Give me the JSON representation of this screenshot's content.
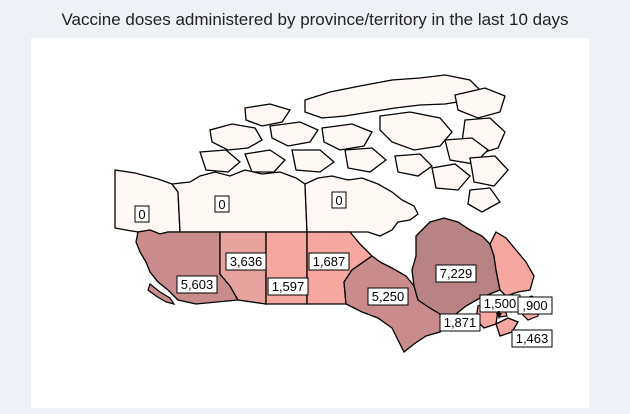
{
  "title": "Vaccine doses administered by province/territory in the last 10 days",
  "colors": {
    "background": "#eef1f5",
    "panel": "#ffffff",
    "zero": "#fff8f5",
    "low": "#f6a79f",
    "mid": "#e7a3a0",
    "high": "#c98b8b",
    "highest": "#b98385",
    "border": "#000000"
  },
  "regions": [
    {
      "id": "yukon",
      "value": "0"
    },
    {
      "id": "northwest-territories",
      "value": "0"
    },
    {
      "id": "nunavut",
      "value": "0"
    },
    {
      "id": "british-columbia",
      "value": "5,603"
    },
    {
      "id": "alberta",
      "value": "3,636"
    },
    {
      "id": "saskatchewan",
      "value": "1,597"
    },
    {
      "id": "manitoba",
      "value": "1,687"
    },
    {
      "id": "ontario",
      "value": "5,250"
    },
    {
      "id": "quebec",
      "value": "7,229"
    },
    {
      "id": "new-brunswick",
      "value": "1,871"
    },
    {
      "id": "prince-edward-island",
      "value": "1,500"
    },
    {
      "id": "newfoundland-and-labrador",
      "value": ",900"
    },
    {
      "id": "nova-scotia",
      "value": "1,463"
    }
  ]
}
